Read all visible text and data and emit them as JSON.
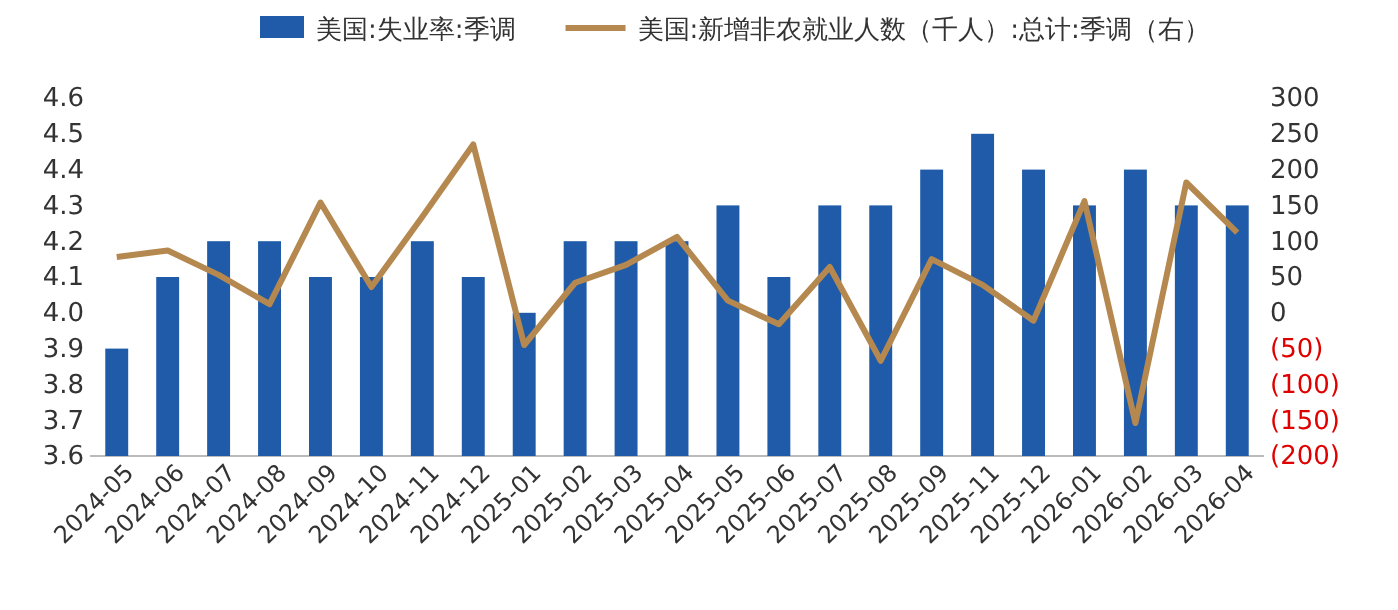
{
  "chart_data": {
    "type": "bar",
    "categories": [
      "2024-05",
      "2024-06",
      "2024-07",
      "2024-08",
      "2024-09",
      "2024-10",
      "2024-11",
      "2024-12",
      "2025-01",
      "2025-02",
      "2025-03",
      "2025-04",
      "2025-05",
      "2025-06",
      "2025-07",
      "2025-08",
      "2025-09",
      "2025-11",
      "2025-12",
      "2026-01",
      "2026-02",
      "2026-03",
      "2026-04"
    ],
    "series": [
      {
        "name": "美国:失业率:季调",
        "color": "#1f5ba8",
        "values": [
          3.9,
          4.1,
          4.2,
          4.2,
          4.1,
          4.1,
          4.2,
          4.1,
          4.0,
          4.2,
          4.2,
          4.2,
          4.3,
          4.1,
          4.3,
          4.3,
          4.4,
          4.5,
          4.4,
          4.3,
          4.4,
          4.3,
          4.3
        ]
      },
      {
        "name": "美国:新增非农就业人数（千人）:总计:季调（右）",
        "type": "line",
        "axis": "y2",
        "color": "#b5884f",
        "values": [
          78,
          87,
          53,
          12,
          154,
          36,
          134,
          235,
          -45,
          42,
          67,
          106,
          17,
          -16,
          64,
          -67,
          75,
          39,
          -11,
          156,
          -154,
          182,
          112
        ]
      }
    ],
    "ylim": [
      3.6,
      4.6
    ],
    "yticks": [
      {
        "value": 3.6,
        "label": "3.6"
      },
      {
        "value": 3.7,
        "label": "3.7"
      },
      {
        "value": 3.8,
        "label": "3.8"
      },
      {
        "value": 3.9,
        "label": "3.9"
      },
      {
        "value": 4.0,
        "label": "4.0"
      },
      {
        "value": 4.1,
        "label": "4.1"
      },
      {
        "value": 4.2,
        "label": "4.2"
      },
      {
        "value": 4.3,
        "label": "4.3"
      },
      {
        "value": 4.4,
        "label": "4.4"
      },
      {
        "value": 4.5,
        "label": "4.5"
      },
      {
        "value": 4.6,
        "label": "4.6"
      }
    ],
    "y2lim": [
      -200,
      300
    ],
    "y2ticks": [
      {
        "value": -200,
        "label": "(200)"
      },
      {
        "value": -150,
        "label": "(150)"
      },
      {
        "value": -100,
        "label": "(100)"
      },
      {
        "value": -50,
        "label": "(50)"
      },
      0,
      50,
      100,
      150,
      200,
      250,
      300
    ],
    "legend": "top",
    "grid": false,
    "marker": "none",
    "line_style": "solid"
  }
}
